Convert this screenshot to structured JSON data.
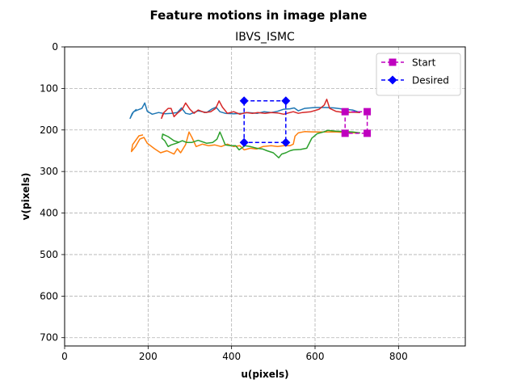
{
  "figure": {
    "suptitle": "Feature motions in image plane"
  },
  "chart_data": {
    "type": "line",
    "title": "IBVS_ISMC",
    "xlabel": "u(pixels)",
    "ylabel": "v(pixels)",
    "xlim": [
      0,
      960
    ],
    "ylim": [
      720,
      0
    ],
    "y_inverted": true,
    "grid": true,
    "grid_style": "dashed",
    "legend_placement": "top-right",
    "x_ticks": [
      0,
      200,
      400,
      600,
      800
    ],
    "y_ticks": [
      0,
      100,
      200,
      300,
      400,
      500,
      600,
      700
    ],
    "x_tick_labels": [
      "0",
      "200",
      "400",
      "600",
      "800"
    ],
    "y_tick_labels": [
      "0",
      "100",
      "200",
      "300",
      "400",
      "500",
      "600",
      "700"
    ],
    "series": [
      {
        "color": "#1f77b4",
        "points": [
          [
            708,
            158
          ],
          [
            690,
            152
          ],
          [
            670,
            150
          ],
          [
            645,
            147
          ],
          [
            625,
            146
          ],
          [
            600,
            146
          ],
          [
            575,
            148
          ],
          [
            560,
            154
          ],
          [
            550,
            147
          ],
          [
            540,
            149
          ],
          [
            525,
            150
          ],
          [
            510,
            155
          ],
          [
            495,
            158
          ],
          [
            478,
            156
          ],
          [
            462,
            160
          ],
          [
            440,
            158
          ],
          [
            425,
            160
          ],
          [
            405,
            161
          ],
          [
            385,
            160
          ],
          [
            372,
            156
          ],
          [
            363,
            145
          ],
          [
            352,
            150
          ],
          [
            340,
            158
          ],
          [
            320,
            154
          ],
          [
            300,
            162
          ],
          [
            290,
            160
          ],
          [
            280,
            147
          ],
          [
            270,
            158
          ],
          [
            255,
            160
          ],
          [
            240,
            161
          ],
          [
            225,
            158
          ],
          [
            210,
            162
          ],
          [
            198,
            155
          ],
          [
            192,
            135
          ],
          [
            185,
            148
          ],
          [
            175,
            152
          ],
          [
            165,
            156
          ],
          [
            157,
            172
          ],
          [
            162,
            160
          ],
          [
            172,
            150
          ]
        ]
      },
      {
        "color": "#ff7f0e",
        "points": [
          [
            708,
            207
          ],
          [
            690,
            207
          ],
          [
            670,
            206
          ],
          [
            650,
            205
          ],
          [
            625,
            205
          ],
          [
            600,
            205
          ],
          [
            575,
            204
          ],
          [
            560,
            207
          ],
          [
            552,
            215
          ],
          [
            548,
            234
          ],
          [
            540,
            238
          ],
          [
            525,
            238
          ],
          [
            510,
            240
          ],
          [
            495,
            238
          ],
          [
            475,
            240
          ],
          [
            460,
            246
          ],
          [
            445,
            244
          ],
          [
            430,
            248
          ],
          [
            420,
            238
          ],
          [
            405,
            240
          ],
          [
            390,
            234
          ],
          [
            375,
            240
          ],
          [
            360,
            236
          ],
          [
            345,
            238
          ],
          [
            330,
            234
          ],
          [
            315,
            240
          ],
          [
            305,
            218
          ],
          [
            298,
            205
          ],
          [
            290,
            235
          ],
          [
            278,
            255
          ],
          [
            270,
            245
          ],
          [
            262,
            258
          ],
          [
            245,
            250
          ],
          [
            230,
            255
          ],
          [
            215,
            245
          ],
          [
            198,
            232
          ],
          [
            190,
            218
          ],
          [
            180,
            222
          ],
          [
            170,
            240
          ],
          [
            160,
            252
          ],
          [
            163,
            235
          ],
          [
            178,
            214
          ],
          [
            188,
            212
          ]
        ]
      },
      {
        "color": "#2ca02c",
        "points": [
          [
            708,
            207
          ],
          [
            690,
            205
          ],
          [
            670,
            204
          ],
          [
            650,
            203
          ],
          [
            630,
            201
          ],
          [
            620,
            205
          ],
          [
            605,
            209
          ],
          [
            592,
            220
          ],
          [
            580,
            244
          ],
          [
            565,
            247
          ],
          [
            548,
            248
          ],
          [
            540,
            250
          ],
          [
            530,
            255
          ],
          [
            520,
            258
          ],
          [
            513,
            267
          ],
          [
            500,
            255
          ],
          [
            485,
            250
          ],
          [
            475,
            246
          ],
          [
            460,
            244
          ],
          [
            445,
            240
          ],
          [
            432,
            238
          ],
          [
            418,
            248
          ],
          [
            410,
            238
          ],
          [
            398,
            238
          ],
          [
            385,
            236
          ],
          [
            375,
            212
          ],
          [
            372,
            205
          ],
          [
            365,
            222
          ],
          [
            355,
            230
          ],
          [
            340,
            232
          ],
          [
            320,
            225
          ],
          [
            305,
            230
          ],
          [
            292,
            230
          ],
          [
            282,
            226
          ],
          [
            268,
            232
          ],
          [
            255,
            236
          ],
          [
            248,
            240
          ],
          [
            240,
            226
          ],
          [
            233,
            220
          ],
          [
            235,
            210
          ],
          [
            248,
            216
          ],
          [
            262,
            226
          ],
          [
            275,
            230
          ]
        ]
      },
      {
        "color": "#d62728",
        "points": [
          [
            708,
            158
          ],
          [
            690,
            157
          ],
          [
            670,
            158
          ],
          [
            650,
            155
          ],
          [
            635,
            148
          ],
          [
            628,
            126
          ],
          [
            622,
            140
          ],
          [
            610,
            150
          ],
          [
            590,
            156
          ],
          [
            570,
            158
          ],
          [
            560,
            160
          ],
          [
            548,
            156
          ],
          [
            540,
            158
          ],
          [
            525,
            162
          ],
          [
            510,
            159
          ],
          [
            495,
            158
          ],
          [
            480,
            160
          ],
          [
            463,
            158
          ],
          [
            450,
            160
          ],
          [
            435,
            158
          ],
          [
            420,
            162
          ],
          [
            405,
            156
          ],
          [
            390,
            160
          ],
          [
            378,
            145
          ],
          [
            370,
            130
          ],
          [
            362,
            148
          ],
          [
            350,
            156
          ],
          [
            335,
            158
          ],
          [
            320,
            152
          ],
          [
            310,
            160
          ],
          [
            300,
            150
          ],
          [
            290,
            135
          ],
          [
            282,
            150
          ],
          [
            270,
            160
          ],
          [
            262,
            168
          ],
          [
            255,
            148
          ],
          [
            248,
            148
          ],
          [
            238,
            158
          ],
          [
            232,
            172
          ],
          [
            236,
            160
          ],
          [
            246,
            150
          ]
        ]
      },
      {
        "name": "Start",
        "color": "#bf00bf",
        "marker": "square",
        "line": "dashed",
        "closed": true,
        "points": [
          [
            672,
            156
          ],
          [
            725,
            156
          ],
          [
            725,
            208
          ],
          [
            672,
            208
          ]
        ]
      },
      {
        "name": "Desired",
        "color": "#0000ff",
        "marker": "diamond",
        "line": "dashed",
        "closed": true,
        "points": [
          [
            430,
            130
          ],
          [
            530,
            130
          ],
          [
            530,
            230
          ],
          [
            430,
            230
          ]
        ]
      }
    ]
  }
}
